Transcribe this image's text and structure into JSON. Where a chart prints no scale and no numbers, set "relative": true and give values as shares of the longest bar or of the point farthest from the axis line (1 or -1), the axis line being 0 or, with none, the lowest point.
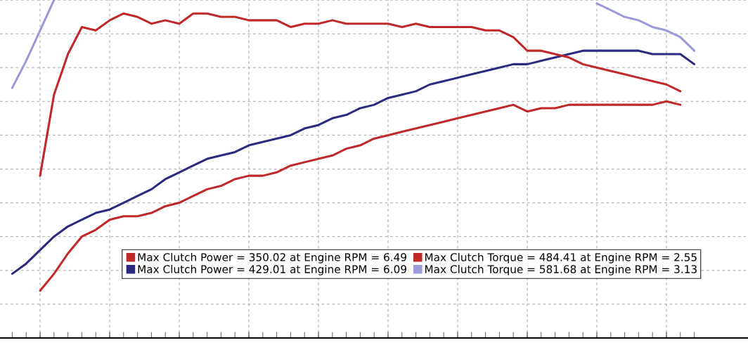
{
  "chart_data": {
    "type": "line",
    "relative": true,
    "grid": true,
    "legend": "bottom",
    "tick_labels": false,
    "line_style": "solid",
    "marker": "none",
    "categories": [
      null,
      null,
      null,
      null,
      null,
      null,
      null,
      null,
      null,
      null,
      null,
      null,
      null,
      null,
      null,
      null,
      null,
      null,
      null,
      null,
      null,
      null,
      null,
      null,
      null,
      null,
      null,
      null,
      null,
      null,
      null,
      null,
      null,
      null,
      null,
      null,
      null,
      null,
      null,
      null,
      null,
      null,
      null,
      null,
      null,
      null,
      null,
      null,
      null,
      null
    ],
    "series": [
      {
        "name": "Max Clutch Power = 350.02 at Engine RPM = 6.49",
        "color": "#c0282a",
        "values": [
          null,
          null,
          0.14,
          0.19,
          0.25,
          0.3,
          0.32,
          0.35,
          0.36,
          0.36,
          0.37,
          0.39,
          0.4,
          0.42,
          0.44,
          0.45,
          0.47,
          0.48,
          0.48,
          0.49,
          0.51,
          0.52,
          0.53,
          0.54,
          0.56,
          0.57,
          0.59,
          0.6,
          0.61,
          0.62,
          0.63,
          0.64,
          0.65,
          0.66,
          0.67,
          0.68,
          0.69,
          0.67,
          0.68,
          0.68,
          0.69,
          0.69,
          0.69,
          0.69,
          0.69,
          0.69,
          0.69,
          0.7,
          0.69,
          null
        ]
      },
      {
        "name": "Max Clutch Power = 429.01 at Engine RPM = 6.09",
        "color": "#2a2a80",
        "values": [
          0.19,
          0.22,
          0.26,
          0.3,
          0.33,
          0.35,
          0.37,
          0.38,
          0.4,
          0.42,
          0.44,
          0.47,
          0.49,
          0.51,
          0.53,
          0.54,
          0.55,
          0.57,
          0.58,
          0.59,
          0.6,
          0.62,
          0.63,
          0.65,
          0.66,
          0.68,
          0.69,
          0.71,
          0.72,
          0.73,
          0.75,
          0.76,
          0.77,
          0.78,
          0.79,
          0.8,
          0.81,
          0.81,
          0.82,
          0.83,
          0.84,
          0.85,
          0.85,
          0.85,
          0.85,
          0.85,
          0.84,
          0.84,
          0.84,
          0.81
        ]
      },
      {
        "name": "Max Clutch Torque = 484.41 at Engine RPM = 2.55",
        "color": "#c0282a",
        "values": [
          null,
          null,
          0.48,
          0.72,
          0.84,
          0.92,
          0.91,
          0.94,
          0.96,
          0.95,
          0.93,
          0.94,
          0.93,
          0.96,
          0.96,
          0.95,
          0.95,
          0.94,
          0.94,
          0.94,
          0.92,
          0.93,
          0.93,
          0.94,
          0.93,
          0.93,
          0.93,
          0.93,
          0.92,
          0.93,
          0.92,
          0.92,
          0.92,
          0.92,
          0.91,
          0.91,
          0.89,
          0.85,
          0.85,
          0.84,
          0.83,
          0.81,
          0.8,
          0.79,
          0.78,
          0.77,
          0.76,
          0.75,
          0.73,
          null
        ]
      },
      {
        "name": "Max Clutch Torque = 581.68 at Engine RPM = 3.13",
        "color": "#9a9ad8",
        "values": [
          0.74,
          0.82,
          0.91,
          1.0,
          null,
          null,
          null,
          null,
          null,
          null,
          null,
          null,
          null,
          null,
          null,
          null,
          null,
          null,
          null,
          null,
          null,
          null,
          null,
          null,
          null,
          null,
          null,
          null,
          null,
          null,
          null,
          null,
          null,
          null,
          null,
          null,
          null,
          null,
          null,
          null,
          null,
          null,
          0.99,
          0.97,
          0.95,
          0.94,
          0.92,
          0.91,
          0.89,
          0.85
        ]
      }
    ]
  }
}
